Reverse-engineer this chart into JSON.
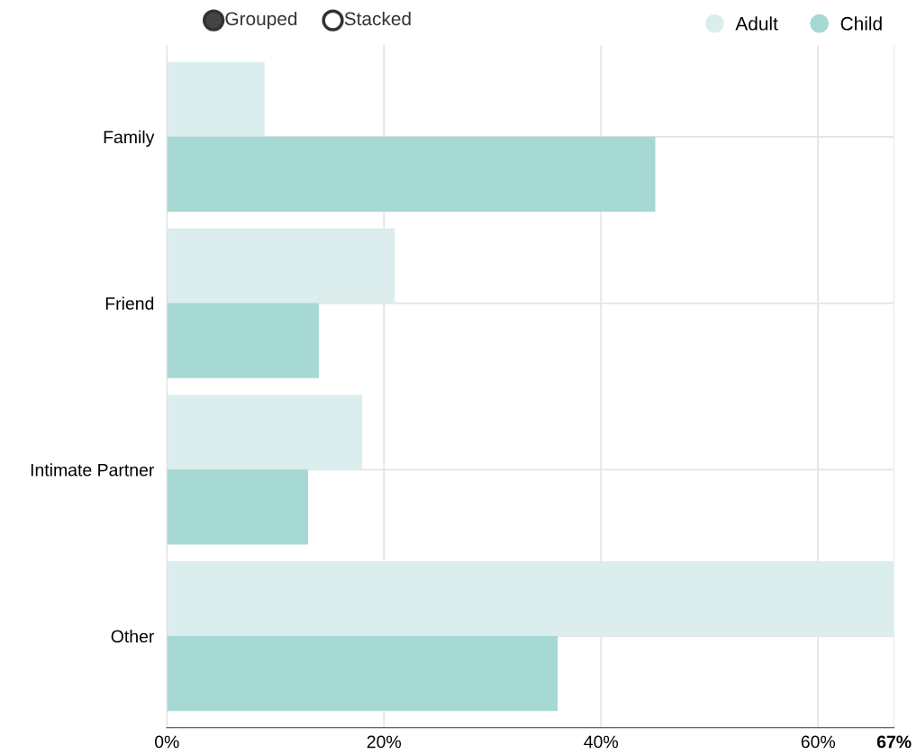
{
  "chart_data": {
    "type": "bar",
    "orientation": "horizontal",
    "categories": [
      "Family",
      "Friend",
      "Intimate Partner",
      "Other"
    ],
    "series": [
      {
        "name": "Adult",
        "color": "#dbeeed",
        "values": [
          9,
          21,
          18,
          67
        ]
      },
      {
        "name": "Child",
        "color": "#a6d8d4",
        "values": [
          45,
          14,
          13,
          36
        ]
      }
    ],
    "xlim": [
      0,
      67
    ],
    "xticks": [
      {
        "value": 0,
        "label": "0%"
      },
      {
        "value": 20,
        "label": "20%"
      },
      {
        "value": 40,
        "label": "40%"
      },
      {
        "value": 60,
        "label": "60%"
      },
      {
        "value": 67,
        "label": "67%"
      }
    ],
    "grid": true,
    "legend": "top right",
    "annotations": [
      "Grouped",
      "Stacked"
    ]
  }
}
